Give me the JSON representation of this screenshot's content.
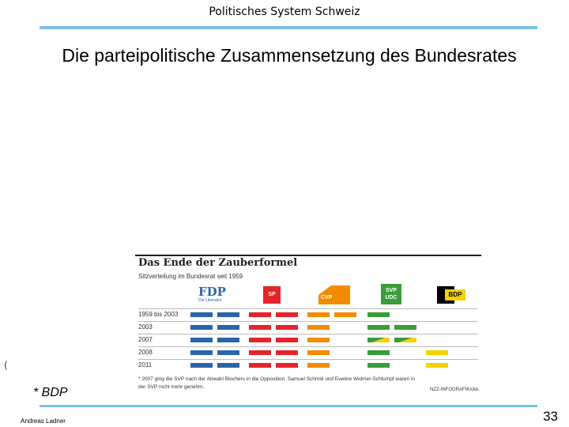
{
  "header": {
    "title": "Politisches System Schweiz"
  },
  "slide": {
    "title": "Die parteipolitische Zusammensetzung des Bundesrates"
  },
  "infographic": {
    "title": "Das Ende der Zauberformel",
    "subtitle": "Sitzverteilung im Bundesrat seit 1959",
    "parties": [
      {
        "name": "FDP",
        "sub": "Die Liberalen",
        "color": "#2b64a8"
      },
      {
        "name": "SP",
        "color": "#e3242b"
      },
      {
        "name": "CVP",
        "color": "#f28c00"
      },
      {
        "name": "SVP UDC",
        "color": "#3a9c3a"
      },
      {
        "name": "BDP",
        "color": "#f5d200"
      }
    ],
    "rows": [
      {
        "label": "1959 bis 2003",
        "seats": {
          "FDP": 2,
          "SP": 2,
          "CVP": 2,
          "SVP": 1,
          "BDP": 0
        }
      },
      {
        "label": "2003",
        "seats": {
          "FDP": 2,
          "SP": 2,
          "CVP": 1,
          "SVP": 2,
          "BDP": 0
        }
      },
      {
        "label": "2007",
        "seats": {
          "FDP": 2,
          "SP": 2,
          "CVP": 1,
          "SVP": 2,
          "BDP": 0
        },
        "svp_striped": true
      },
      {
        "label": "2008",
        "seats": {
          "FDP": 2,
          "SP": 2,
          "CVP": 1,
          "SVP": 1,
          "BDP": 1
        }
      },
      {
        "label": "2011",
        "seats": {
          "FDP": 2,
          "SP": 2,
          "CVP": 1,
          "SVP": 1,
          "BDP": 1
        }
      }
    ],
    "note": "* 2007 ging die SVP nach der Abwahl Blochers in die Opposition. Samuel Schmid und Eveline Widmer-Schlumpf waren in der SVP nicht mehr genehm.",
    "source": "NZZ-INFOGRAFIK/cke."
  },
  "paren": "(",
  "footnote": "* BDP",
  "author": "Andreas Ladner",
  "page_number": "33"
}
